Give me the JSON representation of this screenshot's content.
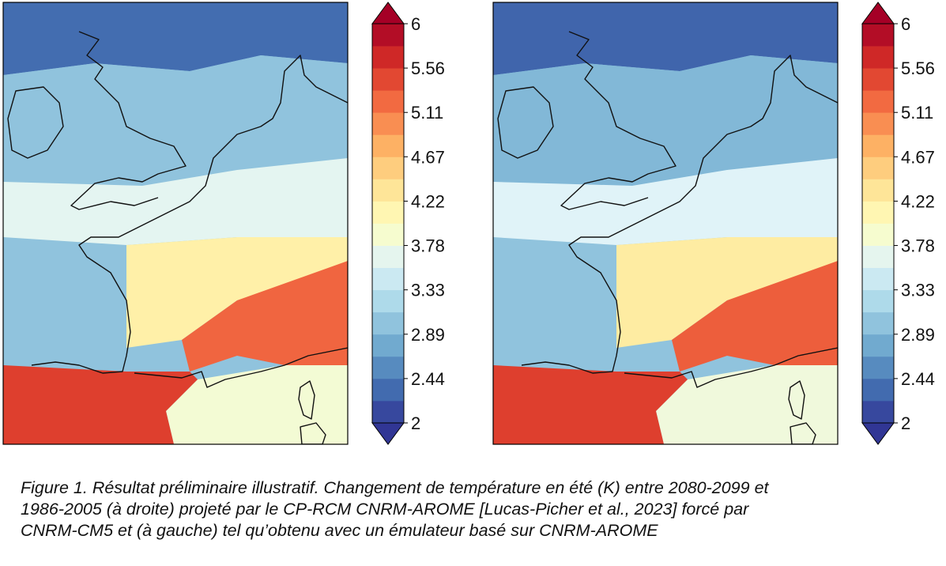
{
  "figure": {
    "caption_lines": [
      "Figure 1. Résultat préliminaire illustratif. Changement de température en été (K) entre 2080-2099 et",
      "1986-2005 (à droite) projeté par le CP-RCM CNRM-AROME [Lucas-Picher et al., 2023] forcé par",
      "CNRM-CM5 et (à gauche) tel qu’obtenu avec un émulateur basé sur CNRM-AROME"
    ]
  },
  "colormap": {
    "name": "RdYlBu_r",
    "colors": [
      "#313695",
      "#4575b4",
      "#74add1",
      "#abd9e9",
      "#e0f3f8",
      "#ffffbf",
      "#fee090",
      "#fdae61",
      "#f46d43",
      "#d73027",
      "#a50026"
    ]
  },
  "chart_data": [
    {
      "type": "heatmap",
      "title": "",
      "region": "North-western Europe (British Isles, France, Benelux, Alps, Corsica)",
      "colorbar": {
        "ticks": [
          "2",
          "2.44",
          "2.89",
          "3.33",
          "3.78",
          "4.22",
          "4.67",
          "5.11",
          "5.56",
          "6"
        ],
        "range": [
          2,
          6
        ],
        "levels": 18,
        "extend": "both"
      },
      "value_ranges_K": {
        "north_atlantic_and_scotland": [
          2.0,
          2.7
        ],
        "british_isles_and_north_sea": [
          2.6,
          3.4
        ],
        "northern_france_and_channel": [
          3.4,
          3.9
        ],
        "central_france": [
          3.9,
          4.5
        ],
        "alps_and_massif_central": [
          4.5,
          6.0
        ],
        "spain_and_pyrenees": [
          5.0,
          6.0
        ],
        "mediterranean_sea": [
          3.6,
          4.1
        ]
      }
    },
    {
      "type": "heatmap",
      "title": "",
      "region": "North-western Europe (British Isles, France, Benelux, Alps, Corsica)",
      "colorbar": {
        "ticks": [
          "2",
          "2.44",
          "2.89",
          "3.33",
          "3.78",
          "4.22",
          "4.67",
          "5.11",
          "5.56",
          "6"
        ],
        "range": [
          2,
          6
        ],
        "levels": 18,
        "extend": "both"
      },
      "value_ranges_K": {
        "north_atlantic_and_scotland": [
          2.0,
          2.6
        ],
        "british_isles_and_north_sea": [
          2.5,
          3.3
        ],
        "northern_france_and_channel": [
          3.3,
          3.9
        ],
        "central_france": [
          3.9,
          4.6
        ],
        "alps_and_massif_central": [
          4.6,
          6.0
        ],
        "spain_and_pyrenees": [
          5.0,
          6.0
        ],
        "mediterranean_sea": [
          3.6,
          4.0
        ]
      }
    }
  ]
}
